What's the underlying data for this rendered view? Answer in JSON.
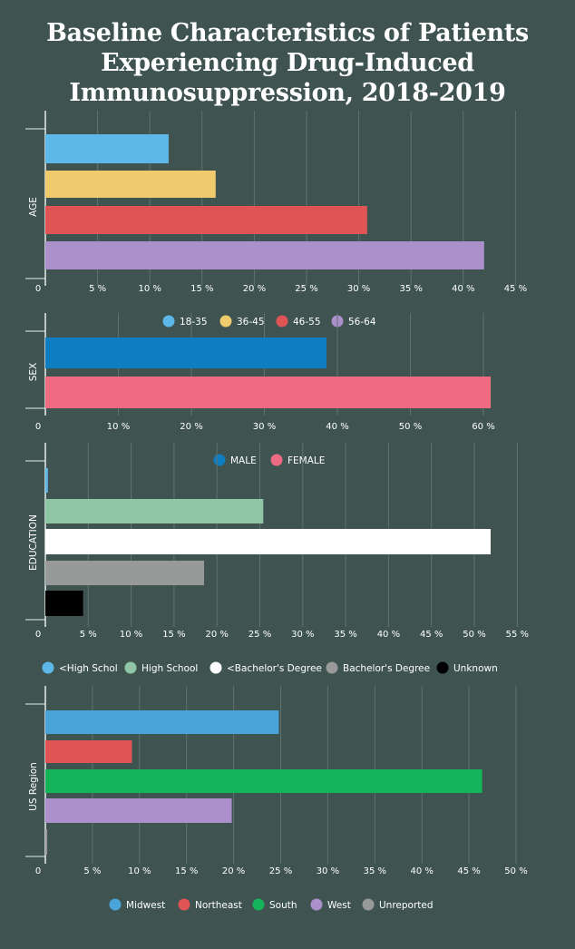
{
  "title_lines": [
    "Baseline Characteristics of Patients",
    "Experiencing Drug-Induced",
    "Immunosuppression, 2018-2019"
  ],
  "colors": {
    "background": "#3f5451",
    "grid": "#5f726f",
    "axis": "#e6ecea",
    "text": "#ffffff"
  },
  "chart_data": [
    {
      "type": "bar",
      "orientation": "horizontal",
      "ylabel": "AGE",
      "x_ticks": [
        "0",
        "5 %",
        "10 %",
        "15 %",
        "20 %",
        "25 %",
        "30 %",
        "35 %",
        "40 %",
        "45 %"
      ],
      "xlim": [
        0,
        45
      ],
      "grid": true,
      "legend_position": "top",
      "series": [
        {
          "name": "18-35",
          "value": 11.8,
          "color": "#5db8e8"
        },
        {
          "name": "36-45",
          "value": 16.3,
          "color": "#f0cb6e"
        },
        {
          "name": "46-55",
          "value": 30.8,
          "color": "#e05456"
        },
        {
          "name": "56-64",
          "value": 42.0,
          "color": "#ab90cc"
        }
      ]
    },
    {
      "type": "bar",
      "orientation": "horizontal",
      "ylabel": "SEX",
      "x_ticks": [
        "0",
        "10 %",
        "20 %",
        "30 %",
        "40 %",
        "50 %",
        "60 %"
      ],
      "xlim": [
        0,
        60
      ],
      "grid": true,
      "legend_position": "top",
      "series": [
        {
          "name": "MALE",
          "value": 38.5,
          "color": "#0f7dc2"
        },
        {
          "name": "FEMALE",
          "value": 61.0,
          "color": "#ef6b82"
        }
      ]
    },
    {
      "type": "bar",
      "orientation": "horizontal",
      "ylabel": "EDUCATION",
      "x_ticks": [
        "0",
        "5 %",
        "10 %",
        "15 %",
        "20 %",
        "25 %",
        "30 %",
        "35 %",
        "40 %",
        "45 %",
        "50 %",
        "55 %"
      ],
      "xlim": [
        0,
        55
      ],
      "grid": true,
      "legend_position": "bottom",
      "series": [
        {
          "name": "<High Schol",
          "value": 0.3,
          "color": "#5db8e8"
        },
        {
          "name": "High School",
          "value": 25.4,
          "color": "#8fc7a6"
        },
        {
          "name": "<Bachelor's Degree",
          "value": 51.9,
          "color": "#ffffff"
        },
        {
          "name": "Bachelor's Degree",
          "value": 18.5,
          "color": "#979a99"
        },
        {
          "name": "Unknown",
          "value": 4.4,
          "color": "#000000"
        }
      ]
    },
    {
      "type": "bar",
      "orientation": "horizontal",
      "ylabel": "US Region",
      "x_ticks": [
        "0",
        "5 %",
        "10 %",
        "15 %",
        "20 %",
        "25 %",
        "30 %",
        "35 %",
        "40 %",
        "45 %",
        "50 %"
      ],
      "xlim": [
        0,
        50
      ],
      "grid": true,
      "legend_position": "bottom",
      "series": [
        {
          "name": "Midwest",
          "value": 24.8,
          "color": "#4aa3d9"
        },
        {
          "name": "Northeast",
          "value": 9.2,
          "color": "#e05456"
        },
        {
          "name": "South",
          "value": 46.4,
          "color": "#14b45a"
        },
        {
          "name": "West",
          "value": 19.8,
          "color": "#ab90cc"
        },
        {
          "name": "Unreported",
          "value": 0.2,
          "color": "#979a99"
        }
      ]
    }
  ]
}
